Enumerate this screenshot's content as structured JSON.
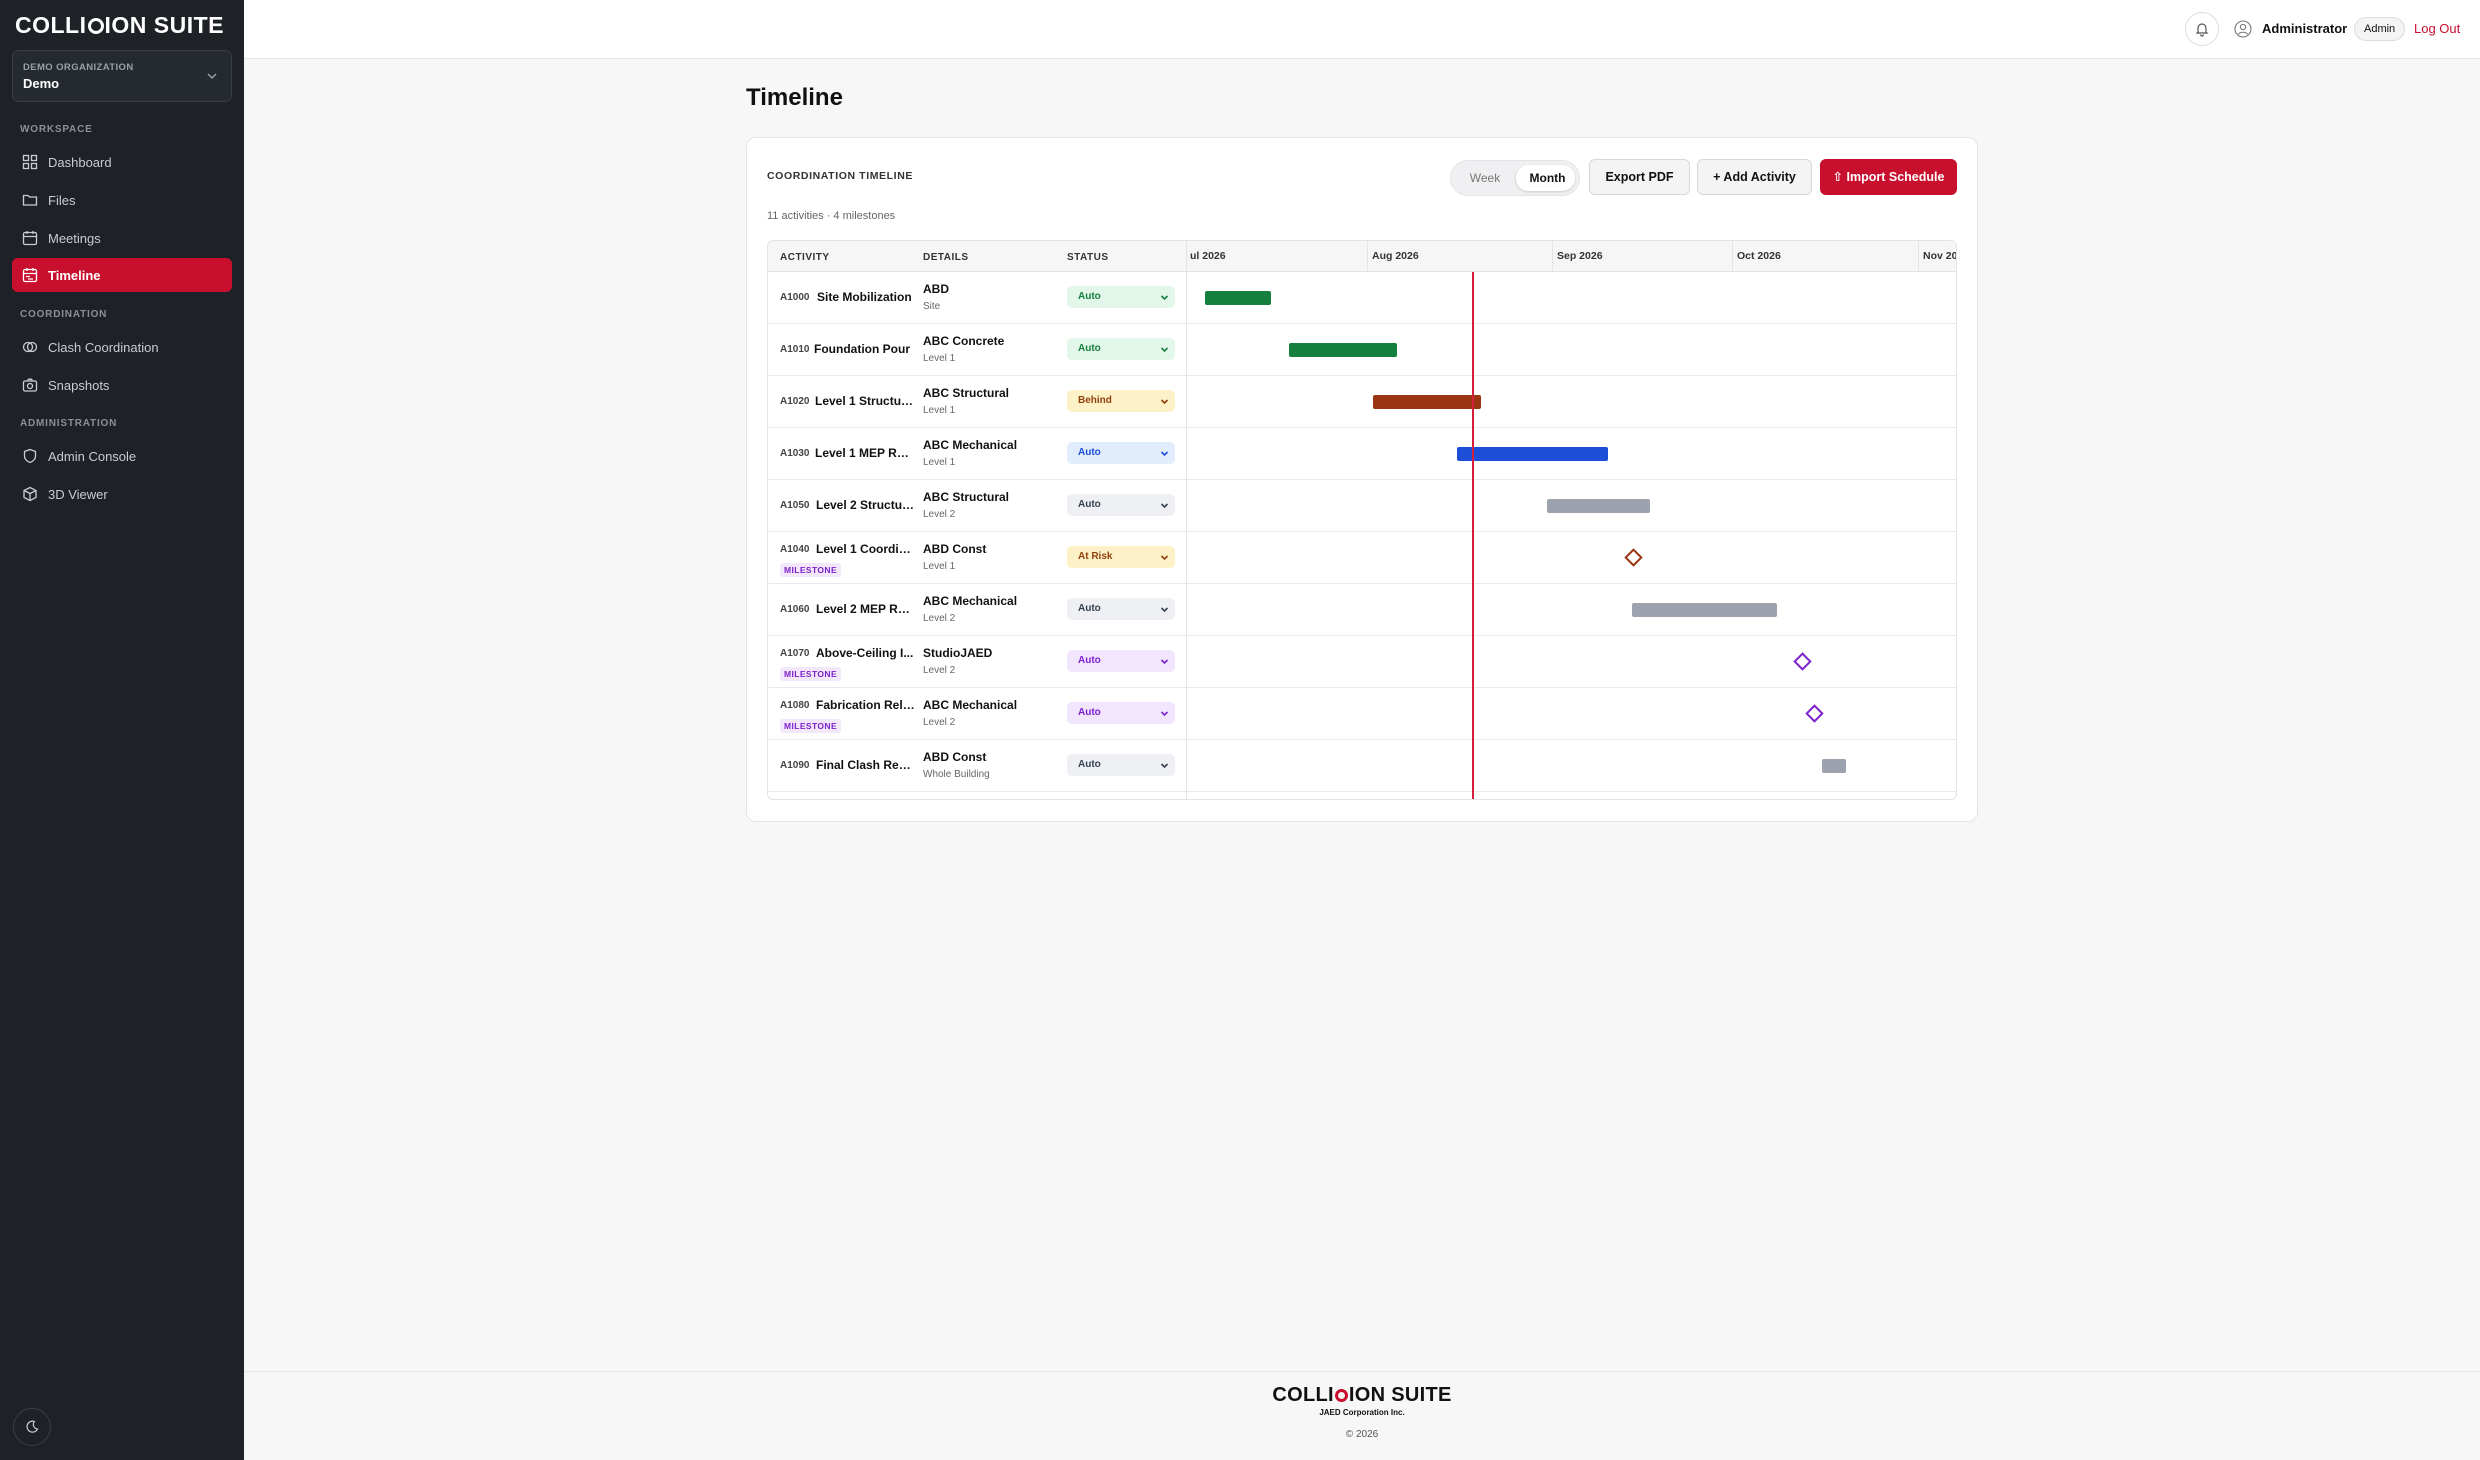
{
  "app": {
    "logo_prefix": "COLLI",
    "logo_suffix": "ION SUITE"
  },
  "org": {
    "label": "DEMO ORGANIZATION",
    "name": "Demo"
  },
  "sidebar": {
    "sections": {
      "workspace": "WORKSPACE",
      "coordination": "COORDINATION",
      "administration": "ADMINISTRATION"
    },
    "items": {
      "dashboard": "Dashboard",
      "files": "Files",
      "meetings": "Meetings",
      "timeline": "Timeline",
      "clash": "Clash Coordination",
      "snapshots": "Snapshots",
      "admin": "Admin Console",
      "viewer": "3D Viewer"
    }
  },
  "header": {
    "user": "Administrator",
    "role": "Admin",
    "logout": "Log Out"
  },
  "page": {
    "title": "Timeline"
  },
  "card": {
    "title": "COORDINATION TIMELINE",
    "subtitle": "11 activities · 4 milestones",
    "view_week": "Week",
    "view_month": "Month",
    "export": "Export PDF",
    "add": "+ Add Activity",
    "import": "⇧ Import Schedule"
  },
  "table": {
    "headers": {
      "activity": "ACTIVITY",
      "details": "DETAILS",
      "status": "STATUS"
    },
    "months": [
      "ul 2026",
      "Aug 2026",
      "Sep 2026",
      "Oct 2026",
      "Nov 20"
    ],
    "rows": [
      {
        "id": "A1000",
        "name": "Site Mobilization",
        "org": "ABD",
        "loc": "Site",
        "status": "Auto"
      },
      {
        "id": "A1010",
        "name": "Foundation Pour",
        "org": "ABC Concrete",
        "loc": "Level 1",
        "status": "Auto"
      },
      {
        "id": "A1020",
        "name": "Level 1 Structura...",
        "org": "ABC Structural",
        "loc": "Level 1",
        "status": "Behind"
      },
      {
        "id": "A1030",
        "name": "Level 1 MEP Roug...",
        "org": "ABC Mechanical",
        "loc": "Level 1",
        "status": "Auto"
      },
      {
        "id": "A1050",
        "name": "Level 2 Structur...",
        "org": "ABC Structural",
        "loc": "Level 2",
        "status": "Auto"
      },
      {
        "id": "A1040",
        "name": "Level 1 Coordina...",
        "org": "ABD Const",
        "loc": "Level 1",
        "status": "At Risk",
        "milestone": "MILESTONE"
      },
      {
        "id": "A1060",
        "name": "Level 2 MEP Rou...",
        "org": "ABC Mechanical",
        "loc": "Level 2",
        "status": "Auto"
      },
      {
        "id": "A1070",
        "name": "Above-Ceiling I...",
        "org": "StudioJAED",
        "loc": "Level 2",
        "status": "Auto",
        "milestone": "MILESTONE"
      },
      {
        "id": "A1080",
        "name": "Fabrication Rele...",
        "org": "ABC Mechanical",
        "loc": "Level 2",
        "status": "Auto",
        "milestone": "MILESTONE"
      },
      {
        "id": "A1090",
        "name": "Final Clash Revi...",
        "org": "ABD Const",
        "loc": "Whole Building",
        "status": "Auto"
      }
    ]
  },
  "colors": {
    "accent": "#c8102e",
    "green": "#15803d",
    "brown": "#9a3412",
    "blue": "#1d4ed8",
    "gray": "#9ca3af",
    "purple": "#7e22ce"
  },
  "footer": {
    "logo_prefix": "COLLI",
    "logo_suffix": "ION SUITE",
    "company": "JAED Corporation Inc.",
    "copyright": "© 2026"
  }
}
